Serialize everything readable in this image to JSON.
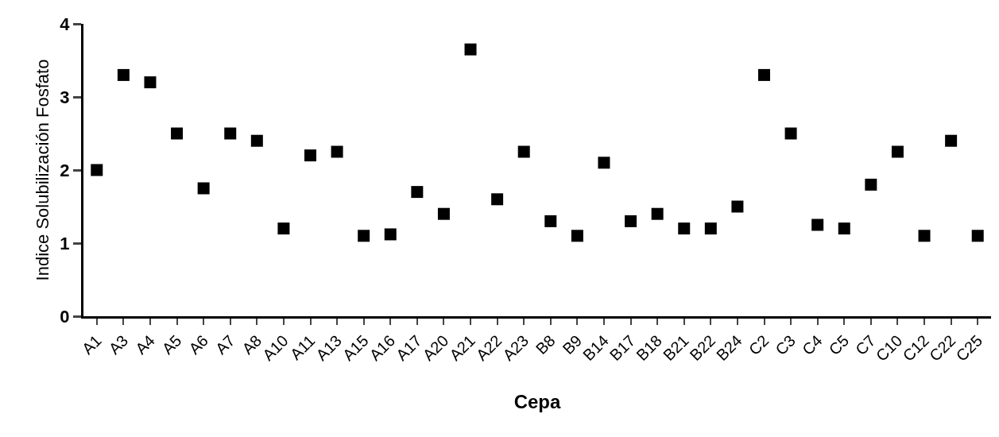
{
  "chart_data": {
    "type": "scatter",
    "xlabel": "Cepa",
    "ylabel": "Indice Solubilización Fosfato",
    "categories": [
      "A1",
      "A3",
      "A4",
      "A5",
      "A6",
      "A7",
      "A8",
      "A10",
      "A11",
      "A13",
      "A15",
      "A16",
      "A17",
      "A20",
      "A21",
      "A22",
      "A23",
      "B8",
      "B9",
      "B14",
      "B17",
      "B18",
      "B21",
      "B22",
      "B24",
      "C2",
      "C3",
      "C4",
      "C5",
      "C7",
      "C10",
      "C12",
      "C22",
      "C25"
    ],
    "values": [
      2.0,
      3.3,
      3.2,
      2.5,
      1.75,
      2.5,
      2.4,
      1.2,
      2.2,
      2.25,
      1.1,
      1.12,
      1.7,
      1.4,
      3.65,
      1.6,
      2.25,
      1.3,
      1.1,
      2.1,
      1.3,
      1.4,
      1.2,
      1.2,
      1.5,
      3.3,
      2.5,
      1.25,
      1.2,
      1.8,
      2.25,
      1.1,
      2.4,
      1.1
    ],
    "color": "#000000",
    "marker": "square",
    "ylim": [
      0,
      4
    ],
    "yticks": [
      0,
      1,
      2,
      3,
      4
    ],
    "grid": false,
    "legend": false
  }
}
